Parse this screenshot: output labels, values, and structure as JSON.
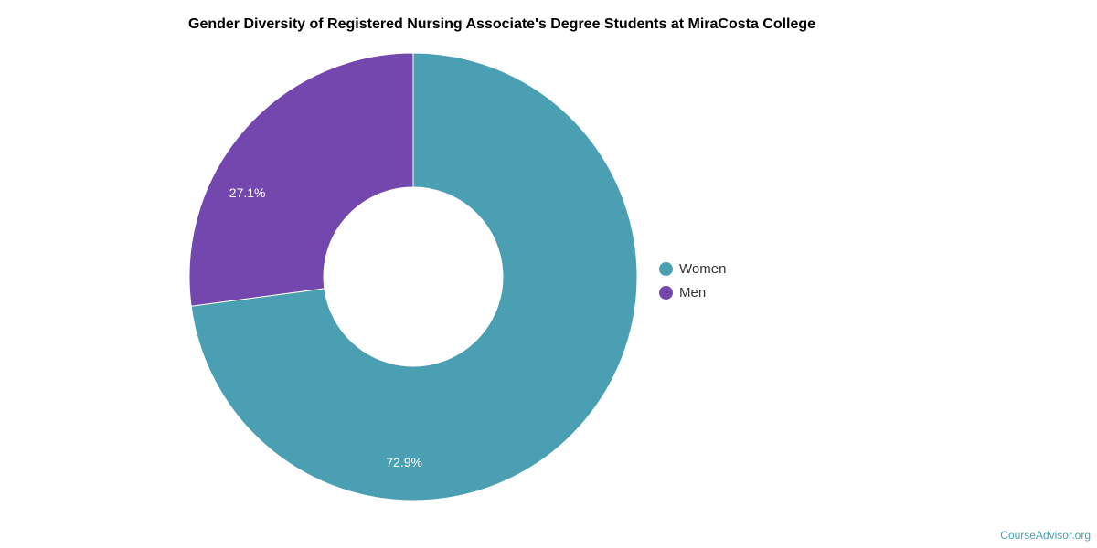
{
  "chart_data": {
    "type": "pie",
    "subtype": "donut",
    "title": "Gender Diversity of Registered Nursing Associate's Degree Students at MiraCosta College",
    "categories": [
      "Women",
      "Men"
    ],
    "values": [
      72.9,
      27.1
    ],
    "labels": [
      "72.9%",
      "27.1%"
    ],
    "colors": [
      "#4aa0b2",
      "#7447ae"
    ],
    "legend_position": "right"
  },
  "watermark": "CourseAdvisor.org"
}
